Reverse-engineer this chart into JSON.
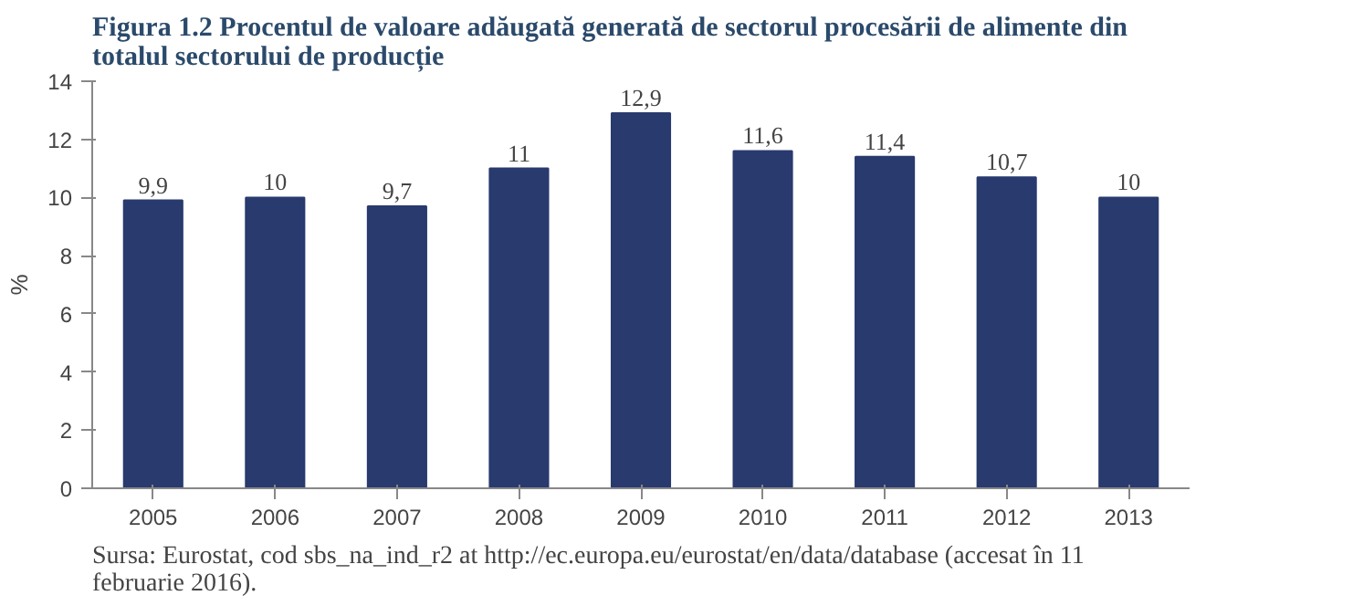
{
  "chart_data": {
    "type": "bar",
    "title": "Figura 1.2 Procentul de valoare adăugată generată de sectorul procesării de alimente din totalul sectorului de producție",
    "ylabel": "%",
    "categories": [
      "2005",
      "2006",
      "2007",
      "2008",
      "2009",
      "2010",
      "2011",
      "2012",
      "2013"
    ],
    "values": [
      9.9,
      10,
      9.7,
      11,
      12.9,
      11.6,
      11.4,
      10.7,
      10
    ],
    "value_labels": [
      "9,9",
      "10",
      "9,7",
      "11",
      "12,9",
      "11,6",
      "11,4",
      "10,7",
      "10"
    ],
    "color": "#283a6e",
    "ylim": [
      0,
      14
    ],
    "yticks": [
      0,
      2,
      4,
      6,
      8,
      10,
      12,
      14
    ],
    "grid": false,
    "annotations": [
      "Sursa: Eurostat, cod sbs_na_ind_r2 at http://ec.europa.eu/eurostat/en/data/database (accesat în 11 februarie 2016)."
    ]
  }
}
